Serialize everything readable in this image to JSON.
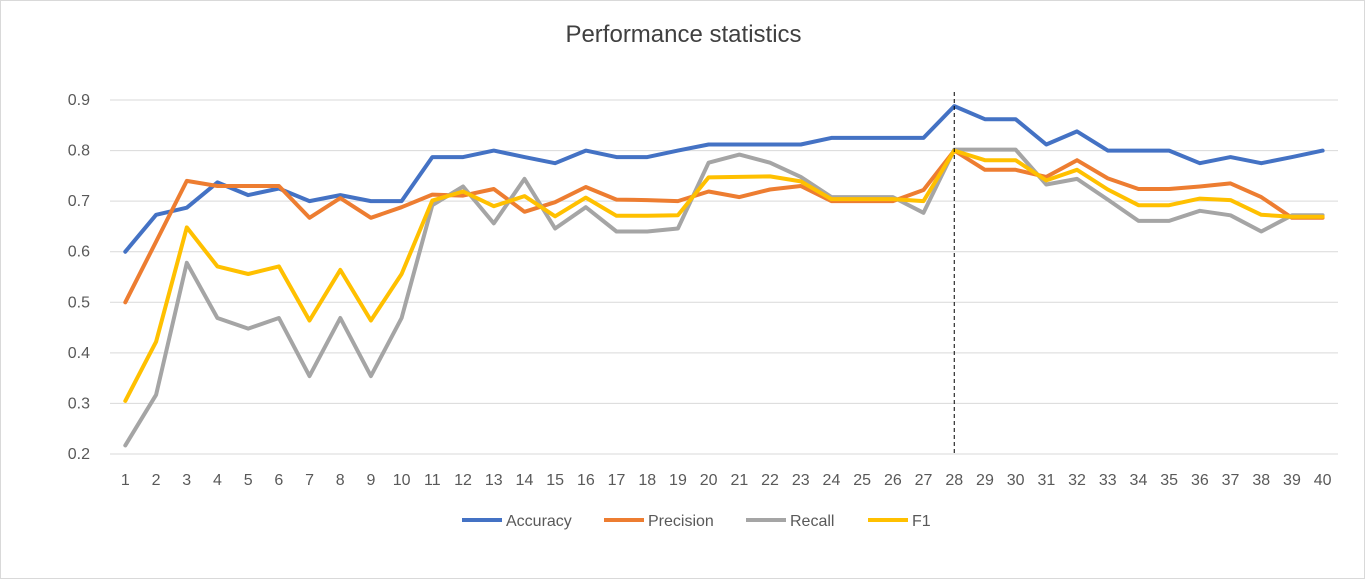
{
  "chart_data": {
    "type": "line",
    "title": "Performance statistics",
    "xlabel": "",
    "ylabel": "",
    "x": [
      1,
      2,
      3,
      4,
      5,
      6,
      7,
      8,
      9,
      10,
      11,
      12,
      13,
      14,
      15,
      16,
      17,
      18,
      19,
      20,
      21,
      22,
      23,
      24,
      25,
      26,
      27,
      28,
      29,
      30,
      31,
      32,
      33,
      34,
      35,
      36,
      37,
      38,
      39,
      40
    ],
    "ylim": [
      0.2,
      0.9
    ],
    "yticks": [
      "0.2",
      "0.3",
      "0.4",
      "0.5",
      "0.6",
      "0.7",
      "0.8",
      "0.9"
    ],
    "grid": true,
    "legend": "bottom",
    "vline_x": 28,
    "series": [
      {
        "name": "Accuracy",
        "color": "#4472c4",
        "values": [
          0.6,
          0.673,
          0.687,
          0.737,
          0.712,
          0.725,
          0.7,
          0.712,
          0.7,
          0.7,
          0.787,
          0.787,
          0.8,
          0.787,
          0.775,
          0.8,
          0.787,
          0.787,
          0.8,
          0.812,
          0.812,
          0.812,
          0.812,
          0.825,
          0.825,
          0.825,
          0.825,
          0.888,
          0.862,
          0.862,
          0.812,
          0.838,
          0.8,
          0.8,
          0.8,
          0.775,
          0.787,
          0.775,
          0.787,
          0.8
        ]
      },
      {
        "name": "Precision",
        "color": "#ed7d31",
        "values": [
          0.5,
          0.62,
          0.74,
          0.73,
          0.73,
          0.73,
          0.667,
          0.706,
          0.667,
          0.688,
          0.713,
          0.711,
          0.724,
          0.679,
          0.698,
          0.728,
          0.703,
          0.702,
          0.7,
          0.719,
          0.708,
          0.723,
          0.73,
          0.7,
          0.7,
          0.7,
          0.722,
          0.8,
          0.762,
          0.762,
          0.748,
          0.781,
          0.745,
          0.724,
          0.724,
          0.729,
          0.735,
          0.708,
          0.667,
          0.667
        ]
      },
      {
        "name": "Recall",
        "color": "#a5a5a5",
        "values": [
          0.217,
          0.317,
          0.578,
          0.469,
          0.448,
          0.469,
          0.354,
          0.469,
          0.354,
          0.469,
          0.692,
          0.729,
          0.656,
          0.744,
          0.646,
          0.688,
          0.64,
          0.64,
          0.646,
          0.776,
          0.792,
          0.776,
          0.748,
          0.708,
          0.708,
          0.708,
          0.677,
          0.802,
          0.802,
          0.802,
          0.733,
          0.744,
          0.703,
          0.661,
          0.661,
          0.681,
          0.672,
          0.64,
          0.672,
          0.672
        ]
      },
      {
        "name": "F1",
        "color": "#ffc000",
        "values": [
          0.305,
          0.422,
          0.648,
          0.571,
          0.556,
          0.571,
          0.464,
          0.564,
          0.464,
          0.556,
          0.701,
          0.719,
          0.69,
          0.71,
          0.67,
          0.707,
          0.671,
          0.671,
          0.672,
          0.747,
          0.748,
          0.749,
          0.739,
          0.704,
          0.704,
          0.704,
          0.7,
          0.8,
          0.781,
          0.781,
          0.741,
          0.762,
          0.723,
          0.692,
          0.692,
          0.705,
          0.702,
          0.673,
          0.669,
          0.669
        ]
      }
    ]
  }
}
